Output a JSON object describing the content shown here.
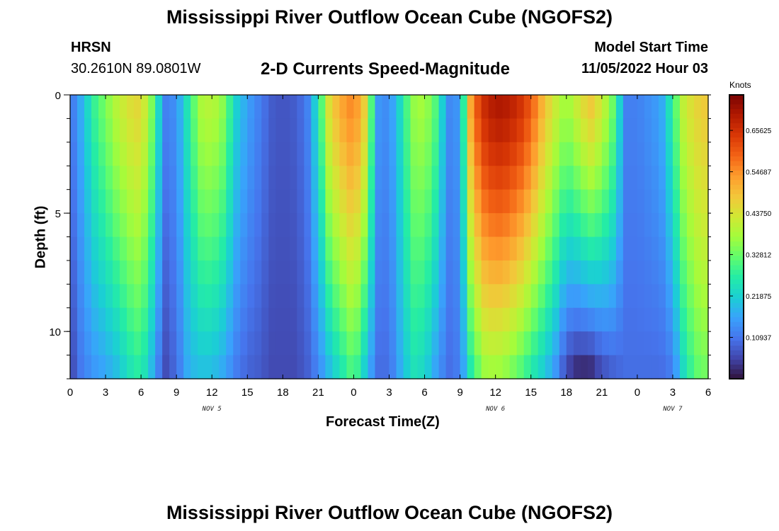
{
  "header": {
    "title": "Mississippi River Outflow Ocean Cube (NGOFS2)",
    "station": "HRSN",
    "coords": "30.2610N  89.0801W",
    "variable": "2-D Currents Speed-Magnitude",
    "model_start_label": "Model Start Time",
    "model_start_time": "11/05/2022 Hour 03"
  },
  "footer": {
    "title_repeat": "Mississippi River Outflow Ocean Cube (NGOFS2)"
  },
  "chart_data": {
    "type": "heatmap",
    "xlabel": "Forecast Time(Z)",
    "ylabel": "Depth (ft)",
    "x_tick_labels": [
      "0",
      "3",
      "6",
      "9",
      "12",
      "15",
      "18",
      "21",
      "0",
      "3",
      "6",
      "9",
      "12",
      "15",
      "18",
      "21",
      "0",
      "3",
      "6"
    ],
    "date_labels": [
      {
        "label": "NOV 5",
        "at_tick": 4
      },
      {
        "label": "NOV 6",
        "at_tick": 12
      },
      {
        "label": "NOV 7",
        "at_tick": 17
      }
    ],
    "y_ticks": [
      0,
      5,
      10
    ],
    "ylim": [
      0,
      12
    ],
    "x_range_hours": [
      0,
      54
    ],
    "colorbar": {
      "title": "Knots",
      "min": 0,
      "max": 0.75,
      "tick_labels": [
        "0.65625",
        "0.54687",
        "0.43750",
        "0.32812",
        "0.21875",
        "0.10937"
      ],
      "tick_values": [
        0.65625,
        0.546875,
        0.4375,
        0.328125,
        0.21875,
        0.109375
      ]
    },
    "colormap": [
      "#30123b",
      "#4145ab",
      "#4675ed",
      "#39a2fc",
      "#1bcfd4",
      "#24eca6",
      "#61fc6c",
      "#a4fc3b",
      "#d1e834",
      "#f3c63a",
      "#fe9b2d",
      "#f36315",
      "#d93806",
      "#b11901",
      "#7a0403"
    ],
    "speed_profile": [
      {
        "h": 0.0,
        "surface": 0.1,
        "bottom": 0.05
      },
      {
        "h": 1.0,
        "surface": 0.18,
        "bottom": 0.12
      },
      {
        "h": 2.0,
        "surface": 0.28,
        "bottom": 0.15
      },
      {
        "h": 3.0,
        "surface": 0.34,
        "bottom": 0.17
      },
      {
        "h": 4.0,
        "surface": 0.4,
        "bottom": 0.2
      },
      {
        "h": 5.0,
        "surface": 0.44,
        "bottom": 0.25
      },
      {
        "h": 6.0,
        "surface": 0.46,
        "bottom": 0.28
      },
      {
        "h": 7.0,
        "surface": 0.33,
        "bottom": 0.18
      },
      {
        "h": 8.0,
        "surface": 0.12,
        "bottom": 0.06
      },
      {
        "h": 9.0,
        "surface": 0.14,
        "bottom": 0.1
      },
      {
        "h": 10.0,
        "surface": 0.26,
        "bottom": 0.18
      },
      {
        "h": 11.0,
        "surface": 0.38,
        "bottom": 0.2
      },
      {
        "h": 12.0,
        "surface": 0.4,
        "bottom": 0.2
      },
      {
        "h": 13.0,
        "surface": 0.35,
        "bottom": 0.17
      },
      {
        "h": 14.0,
        "surface": 0.22,
        "bottom": 0.12
      },
      {
        "h": 15.0,
        "surface": 0.16,
        "bottom": 0.09
      },
      {
        "h": 16.0,
        "surface": 0.12,
        "bottom": 0.08
      },
      {
        "h": 17.0,
        "surface": 0.08,
        "bottom": 0.06
      },
      {
        "h": 18.0,
        "surface": 0.07,
        "bottom": 0.06
      },
      {
        "h": 19.0,
        "surface": 0.08,
        "bottom": 0.06
      },
      {
        "h": 20.0,
        "surface": 0.11,
        "bottom": 0.08
      },
      {
        "h": 21.0,
        "surface": 0.25,
        "bottom": 0.13
      },
      {
        "h": 22.0,
        "surface": 0.46,
        "bottom": 0.2
      },
      {
        "h": 23.0,
        "surface": 0.52,
        "bottom": 0.26
      },
      {
        "h": 24.0,
        "surface": 0.56,
        "bottom": 0.32
      },
      {
        "h": 25.0,
        "surface": 0.46,
        "bottom": 0.21
      },
      {
        "h": 26.0,
        "surface": 0.15,
        "bottom": 0.1
      },
      {
        "h": 27.0,
        "surface": 0.13,
        "bottom": 0.1
      },
      {
        "h": 28.0,
        "surface": 0.24,
        "bottom": 0.18
      },
      {
        "h": 29.0,
        "surface": 0.36,
        "bottom": 0.25
      },
      {
        "h": 30.0,
        "surface": 0.38,
        "bottom": 0.23
      },
      {
        "h": 31.0,
        "surface": 0.3,
        "bottom": 0.16
      },
      {
        "h": 32.0,
        "surface": 0.13,
        "bottom": 0.1
      },
      {
        "h": 33.0,
        "surface": 0.15,
        "bottom": 0.12
      },
      {
        "h": 34.0,
        "surface": 0.56,
        "bottom": 0.28
      },
      {
        "h": 35.0,
        "surface": 0.66,
        "bottom": 0.37
      },
      {
        "h": 36.0,
        "surface": 0.7,
        "bottom": 0.38
      },
      {
        "h": 37.0,
        "surface": 0.69,
        "bottom": 0.36
      },
      {
        "h": 38.0,
        "surface": 0.66,
        "bottom": 0.32
      },
      {
        "h": 39.0,
        "surface": 0.6,
        "bottom": 0.27
      },
      {
        "h": 40.0,
        "surface": 0.5,
        "bottom": 0.22
      },
      {
        "h": 41.0,
        "surface": 0.42,
        "bottom": 0.16
      },
      {
        "h": 42.0,
        "surface": 0.36,
        "bottom": 0.06
      },
      {
        "h": 43.0,
        "surface": 0.42,
        "bottom": 0.03
      },
      {
        "h": 44.0,
        "surface": 0.48,
        "bottom": 0.03
      },
      {
        "h": 45.0,
        "surface": 0.42,
        "bottom": 0.07
      },
      {
        "h": 46.0,
        "surface": 0.32,
        "bottom": 0.09
      },
      {
        "h": 47.0,
        "surface": 0.12,
        "bottom": 0.1
      },
      {
        "h": 48.0,
        "surface": 0.12,
        "bottom": 0.1
      },
      {
        "h": 49.0,
        "surface": 0.14,
        "bottom": 0.1
      },
      {
        "h": 50.0,
        "surface": 0.16,
        "bottom": 0.1
      },
      {
        "h": 51.0,
        "surface": 0.28,
        "bottom": 0.12
      },
      {
        "h": 52.0,
        "surface": 0.42,
        "bottom": 0.25
      },
      {
        "h": 53.0,
        "surface": 0.46,
        "bottom": 0.32
      },
      {
        "h": 54.0,
        "surface": 0.48,
        "bottom": 0.34
      }
    ]
  }
}
